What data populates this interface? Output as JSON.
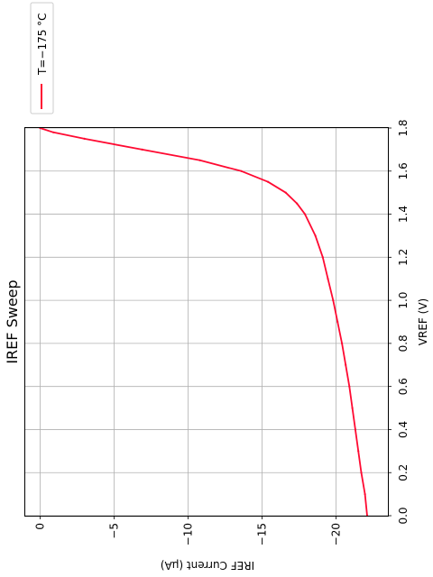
{
  "chart_data": {
    "type": "line",
    "title": "IREF Sweep",
    "xlabel": "VREF (V)",
    "ylabel": "IREF Current (µA)",
    "x_ticks": [
      "0.0",
      "0.2",
      "0.4",
      "0.6",
      "0.8",
      "1.0",
      "1.2",
      "1.4",
      "1.6",
      "1.8"
    ],
    "y_ticks": [
      "0",
      "−5",
      "−10",
      "−15",
      "−20"
    ],
    "xlim": [
      0.0,
      1.8
    ],
    "ylim": [
      1.0,
      -23.5
    ],
    "grid": true,
    "legend_position": "top-right",
    "series": [
      {
        "name": "T=−175 °C",
        "color": "#ff0a32",
        "x": [
          0.0,
          0.1,
          0.2,
          0.3,
          0.4,
          0.5,
          0.6,
          0.7,
          0.8,
          0.9,
          1.0,
          1.1,
          1.2,
          1.3,
          1.4,
          1.45,
          1.5,
          1.55,
          1.6,
          1.65,
          1.7,
          1.75,
          1.78,
          1.8
        ],
        "y": [
          -22.1,
          -21.95,
          -21.7,
          -21.5,
          -21.3,
          -21.1,
          -20.9,
          -20.65,
          -20.4,
          -20.1,
          -19.8,
          -19.45,
          -19.1,
          -18.6,
          -17.9,
          -17.35,
          -16.6,
          -15.4,
          -13.6,
          -10.8,
          -6.9,
          -3.0,
          -0.9,
          0.0
        ]
      }
    ]
  }
}
